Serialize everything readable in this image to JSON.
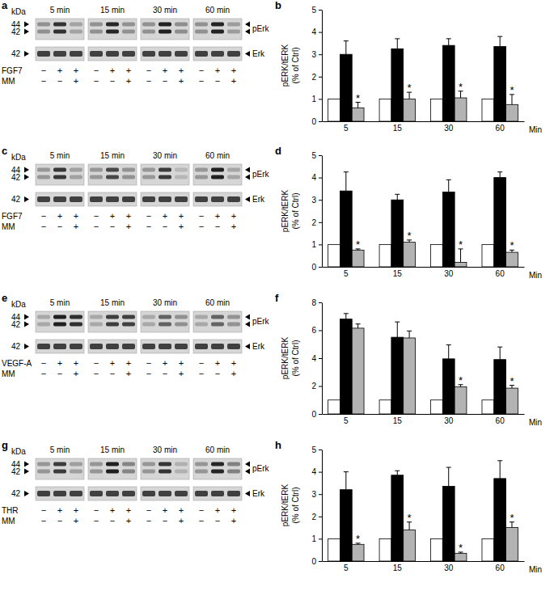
{
  "chart_data": [
    {
      "type": "bar",
      "panel": "b",
      "categories": [
        "5",
        "15",
        "30",
        "60"
      ],
      "x_label": "Min",
      "y_label": [
        "pERK/tERK",
        "(% of Ctrl)"
      ],
      "ylim": [
        0,
        5
      ],
      "yticks": [
        0,
        1,
        2,
        3,
        4,
        5
      ],
      "series": [
        {
          "color": "#ffffff",
          "values": [
            1,
            1,
            1,
            1
          ]
        },
        {
          "color": "#000000",
          "values": [
            3.0,
            3.25,
            3.4,
            3.35
          ],
          "errors": [
            0.6,
            0.45,
            0.3,
            0.45
          ]
        },
        {
          "color": "#b3b3b3",
          "values": [
            0.6,
            1.0,
            1.05,
            0.75
          ],
          "errors": [
            0.25,
            0.3,
            0.3,
            0.45
          ],
          "significance": [
            "*",
            "*",
            "*",
            "*"
          ]
        }
      ]
    },
    {
      "type": "bar",
      "panel": "d",
      "categories": [
        "5",
        "15",
        "30",
        "60"
      ],
      "x_label": "Min",
      "y_label": [
        "pERK/tERK",
        "(% of Ctrl)"
      ],
      "ylim": [
        0,
        5
      ],
      "yticks": [
        0,
        1,
        2,
        3,
        4,
        5
      ],
      "series": [
        {
          "color": "#ffffff",
          "values": [
            1,
            1,
            1,
            1
          ]
        },
        {
          "color": "#000000",
          "values": [
            3.4,
            3.0,
            3.35,
            4.0
          ],
          "errors": [
            0.85,
            0.25,
            0.55,
            0.25
          ]
        },
        {
          "color": "#b3b3b3",
          "values": [
            0.75,
            1.1,
            0.2,
            0.65
          ],
          "errors": [
            0.05,
            0.1,
            0.6,
            0.1
          ],
          "significance": [
            "*",
            "*",
            "*",
            "*"
          ]
        }
      ]
    },
    {
      "type": "bar",
      "panel": "f",
      "categories": [
        "5",
        "15",
        "30",
        "60"
      ],
      "x_label": "Min",
      "y_label": [
        "pERK/tERK",
        "(% of Ctrl)"
      ],
      "ylim": [
        0,
        8
      ],
      "yticks": [
        0,
        2,
        4,
        6,
        8
      ],
      "series": [
        {
          "color": "#ffffff",
          "values": [
            1,
            1,
            1,
            1
          ]
        },
        {
          "color": "#000000",
          "values": [
            6.8,
            5.5,
            3.95,
            3.9
          ],
          "errors": [
            0.4,
            1.1,
            1.0,
            0.9
          ]
        },
        {
          "color": "#b3b3b3",
          "values": [
            6.15,
            5.45,
            1.95,
            1.85
          ],
          "errors": [
            0.3,
            0.5,
            0.15,
            0.2
          ],
          "significance": [
            null,
            null,
            "*",
            "*"
          ]
        }
      ]
    },
    {
      "type": "bar",
      "panel": "h",
      "categories": [
        "5",
        "15",
        "30",
        "60"
      ],
      "x_label": "Min",
      "y_label": [
        "pERK/tERK",
        "(% of Ctrl)"
      ],
      "ylim": [
        0,
        5
      ],
      "yticks": [
        0,
        1,
        2,
        3,
        4,
        5
      ],
      "series": [
        {
          "color": "#ffffff",
          "values": [
            1,
            1,
            1,
            1
          ]
        },
        {
          "color": "#000000",
          "values": [
            3.2,
            3.85,
            3.35,
            3.7
          ],
          "errors": [
            0.8,
            0.2,
            0.85,
            0.8
          ]
        },
        {
          "color": "#b3b3b3",
          "values": [
            0.75,
            1.4,
            0.35,
            1.5
          ],
          "errors": [
            0.05,
            0.35,
            0.05,
            0.25
          ],
          "significance": [
            "*",
            "*",
            "*",
            "*"
          ]
        }
      ]
    }
  ],
  "blots": [
    {
      "panel": "a",
      "kda": "kDa",
      "times": [
        "5 min",
        "15 min",
        "30 min",
        "60 min"
      ],
      "top_kda": [
        44,
        42
      ],
      "bottom_kda": 42,
      "top_label": "pErk",
      "bottom_label": "Erk",
      "rows": [
        {
          "label": "FGF7",
          "signs": [
            "−",
            "+",
            "+"
          ]
        },
        {
          "label": "MM",
          "signs": [
            "−",
            "−",
            "+"
          ]
        }
      ]
    },
    {
      "panel": "c",
      "kda": "kDa",
      "times": [
        "5 min",
        "15 min",
        "30 min",
        "60 min"
      ],
      "top_kda": [
        44,
        42
      ],
      "bottom_kda": 42,
      "top_label": "pErk",
      "bottom_label": "Erk",
      "rows": [
        {
          "label": "FGF7",
          "signs": [
            "−",
            "+",
            "+"
          ]
        },
        {
          "label": "MM",
          "signs": [
            "−",
            "−",
            "+"
          ]
        }
      ]
    },
    {
      "panel": "e",
      "kda": "kDa",
      "times": [
        "5 min",
        "15 min",
        "30 min",
        "60 min"
      ],
      "top_kda": [
        44,
        42
      ],
      "bottom_kda": 42,
      "top_label": "pErk",
      "bottom_label": "Erk",
      "rows": [
        {
          "label": "VEGF-A",
          "signs": [
            "−",
            "+",
            "+"
          ]
        },
        {
          "label": "MM",
          "signs": [
            "−",
            "−",
            "+"
          ]
        }
      ]
    },
    {
      "panel": "g",
      "kda": "kDa",
      "times": [
        "5 min",
        "15 min",
        "30 min",
        "60 min"
      ],
      "top_kda": [
        44,
        42
      ],
      "bottom_kda": 42,
      "top_label": "pErk",
      "bottom_label": "Erk",
      "rows": [
        {
          "label": "THR",
          "signs": [
            "−",
            "+",
            "+"
          ]
        },
        {
          "label": "MM",
          "signs": [
            "−",
            "−",
            "+"
          ]
        }
      ]
    }
  ]
}
